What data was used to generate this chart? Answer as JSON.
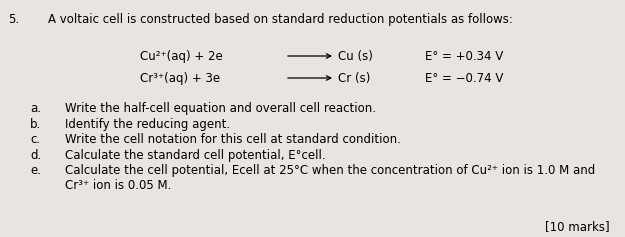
{
  "bg_color": "#e8e4df",
  "fig_width": 6.25,
  "fig_height": 2.37,
  "dpi": 100,
  "question_num": "5.",
  "intro_text": "A voltaic cell is constructed based on standard reduction potentials as follows:",
  "r1_left": "Cu²⁺(aq) + 2e",
  "r1_mid": "Cu (s)",
  "r1_E": "E° = +0.34 V",
  "r2_left": "Cr³⁺(aq) + 3e",
  "r2_mid": "Cr (s)",
  "r2_E": "E° = −0.74 V",
  "items": [
    [
      "a.",
      "Write the half-cell equation and overall cell reaction."
    ],
    [
      "b.",
      "Identify the reducing agent."
    ],
    [
      "c.",
      "Write the cell notation for this cell at standard condition."
    ],
    [
      "d.",
      "Calculate the standard cell potential, E°cell."
    ],
    [
      "e.",
      "Calculate the cell potential, Ecell at 25°C when the concentration of Cu²⁺ ion is 1.0 M and\n        Cr³⁺ ion is 0.05 M."
    ]
  ],
  "marks_text": "[10 marks]",
  "font_size": 8.5
}
